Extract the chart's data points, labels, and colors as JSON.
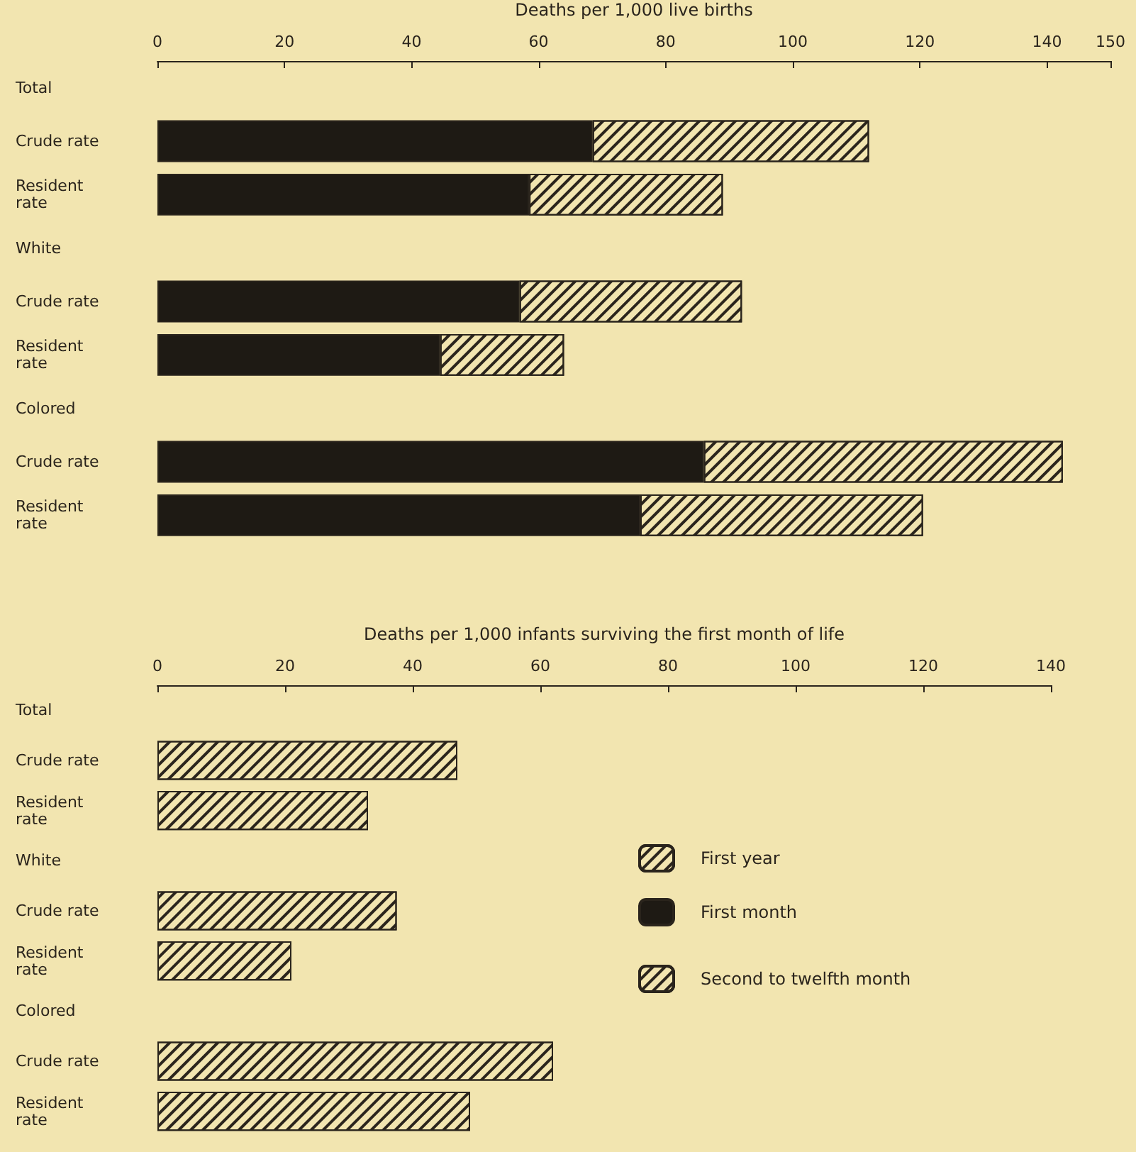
{
  "chart_data": [
    {
      "type": "bar",
      "orientation": "horizontal",
      "stacked": true,
      "xlabel": "Deaths per 1,000 live births",
      "categories": [
        "Total",
        "Crude rate",
        "Resident rate",
        "White",
        "Crude rate",
        "Resident rate",
        "Colored",
        "Crude rate",
        "Resident rate"
      ],
      "series": [
        {
          "name": "First month",
          "color": "#1e1a14",
          "values": [
            null,
            68.5,
            58.5,
            null,
            57,
            44.5,
            null,
            86,
            76
          ]
        },
        {
          "name": "First year",
          "color": "#f2e5b0",
          "values": [
            null,
            43.5,
            30.5,
            null,
            35,
            19.5,
            null,
            56.5,
            44.5
          ]
        }
      ],
      "xlim": [
        0,
        150
      ],
      "xticks": [
        0,
        20,
        40,
        60,
        80,
        100,
        120,
        140,
        150
      ],
      "grid": false,
      "legend": "bottom right"
    },
    {
      "type": "bar",
      "orientation": "horizontal",
      "xlabel": "Deaths per 1,000 infants surviving the first month of life",
      "categories": [
        "Total",
        "Crude rate",
        "Resident rate",
        "White",
        "Crude rate",
        "Resident rate",
        "Colored",
        "Crude rate",
        "Resident rate"
      ],
      "series": [
        {
          "name": "Second to twelfth month",
          "color": "#f2e5b0",
          "values": [
            null,
            47,
            33,
            null,
            37.5,
            21,
            null,
            62,
            49
          ]
        }
      ],
      "xlim": [
        0,
        140
      ],
      "xticks": [
        0,
        20,
        40,
        60,
        80,
        100,
        120,
        140
      ],
      "grid": false,
      "legend": "right"
    }
  ]
}
